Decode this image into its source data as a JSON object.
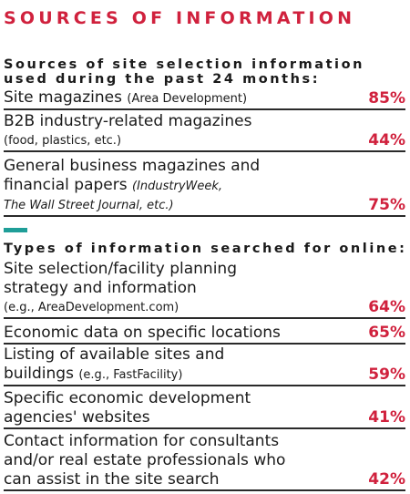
{
  "title": "SOURCES OF INFORMATION",
  "section1": {
    "heading_line1": "Sources of site selection information",
    "heading_line2": "used during the past 24 months:",
    "rows": [
      {
        "line1": "Site magazines ",
        "line1_sub": "(Area Development)",
        "pct": "85%"
      },
      {
        "line1": "B2B industry-related magazines",
        "line2_sub": "(food, plastics, etc.)",
        "pct": "44%"
      },
      {
        "line1": "General business magazines and",
        "line2": "financial papers ",
        "line2_sub_italic": "(IndustryWeek,",
        "line3_sub_italic": "The Wall Street Journal, etc.)",
        "pct": "75%"
      }
    ]
  },
  "section2": {
    "heading": "Types of information searched for online:",
    "rows": [
      {
        "line1": "Site selection/facility planning",
        "line2": "strategy and information",
        "line3_sub": "(e.g., AreaDevelopment.com)",
        "pct": "64%"
      },
      {
        "line1": "Economic data on specific locations",
        "pct": "65%"
      },
      {
        "line1": "Listing of available sites and",
        "line2": "buildings ",
        "line2_sub": "(e.g., FastFacility)",
        "pct": "59%"
      },
      {
        "line1": "Specific economic development",
        "line2": "agencies' websites",
        "pct": "41%"
      },
      {
        "line1": "Contact information for consultants",
        "line2": "and/or real estate professionals who",
        "line3": "can assist in the site search",
        "pct": "42%"
      }
    ]
  },
  "colors": {
    "accent_red": "#d0213d",
    "divider_teal": "#1f9e98",
    "text": "#1a1a1a"
  }
}
